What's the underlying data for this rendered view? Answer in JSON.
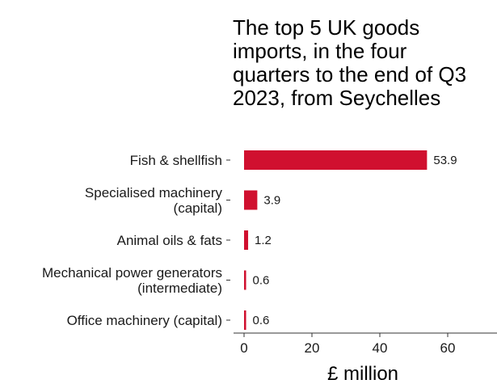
{
  "chart_data": {
    "type": "bar",
    "orientation": "horizontal",
    "title": "The top 5 UK goods\nimports, in the four\nquarters to the end of Q3\n2023, from Seychelles",
    "categories": [
      "Fish & shellfish",
      "Specialised machinery\n(capital)",
      "Animal oils & fats",
      "Mechanical power generators\n(intermediate)",
      "Office machinery (capital)"
    ],
    "values": [
      53.9,
      3.9,
      1.2,
      0.6,
      0.6
    ],
    "value_labels": [
      "53.9",
      "3.9",
      "1.2",
      "0.6",
      "0.6"
    ],
    "xlabel": "£ million",
    "xticks": [
      0,
      20,
      40,
      60
    ],
    "xlim": [
      0,
      70
    ],
    "bar_color": "#d0102f",
    "grid": false,
    "legend": "none"
  }
}
